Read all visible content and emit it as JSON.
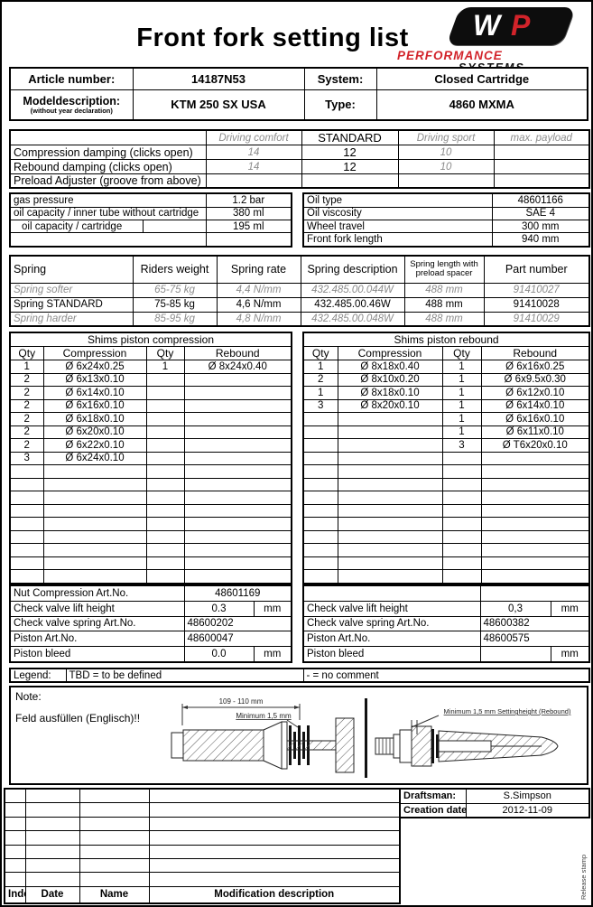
{
  "title": "Front fork setting list",
  "logo": {
    "monogram_w": "W",
    "monogram_p": "P",
    "performance": "PERFORMANCE",
    "systems": "SYSTEMS"
  },
  "colors": {
    "accent_red": "#d2232a",
    "muted_gray": "#8c8c8c"
  },
  "header": {
    "article_number_label": "Article number:",
    "article_number": "14187N53",
    "system_label": "System:",
    "system": "Closed Cartridge",
    "model_label": "Modeldescription:",
    "model_sublabel": "(without year declaration)",
    "model": "KTM 250 SX USA",
    "type_label": "Type:",
    "type": "4860 MXMA"
  },
  "damping": {
    "columns": [
      "Driving comfort",
      "STANDARD",
      "Driving sport",
      "max. payload"
    ],
    "rows": [
      {
        "label": "Compression damping (clicks open)",
        "values": [
          "14",
          "12",
          "10",
          ""
        ]
      },
      {
        "label": "Rebound damping (clicks open)",
        "values": [
          "14",
          "12",
          "10",
          ""
        ]
      },
      {
        "label": "Preload Adjuster (groove from above)",
        "values": [
          "",
          "",
          "",
          ""
        ]
      }
    ]
  },
  "oil_left": {
    "rows": [
      {
        "label": "gas pressure",
        "value": "1.2 bar"
      },
      {
        "label": "oil capacity / inner tube without cartridge",
        "value": "380 ml"
      },
      {
        "label": "oil capacity / cartridge",
        "value": "195 ml"
      },
      {
        "label": "",
        "value": ""
      }
    ]
  },
  "oil_right": {
    "rows": [
      {
        "label": "Oil type",
        "value": "48601166"
      },
      {
        "label": "Oil viscosity",
        "value": "SAE 4"
      },
      {
        "label": "Wheel travel",
        "value": "300 mm"
      },
      {
        "label": "Front fork length",
        "value": "940 mm"
      }
    ]
  },
  "spring": {
    "headers": [
      "Spring",
      "Riders weight",
      "Spring rate",
      "Spring description",
      "Spring length with preload spacer",
      "Part number"
    ],
    "rows": [
      {
        "style": "muted",
        "cells": [
          "Spring softer",
          "65-75 kg",
          "4,4 N/mm",
          "432.485.00.044W",
          "488 mm",
          "91410027"
        ]
      },
      {
        "style": "standard",
        "cells": [
          "Spring STANDARD",
          "75-85 kg",
          "4,6 N/mm",
          "432.485.00.46W",
          "488 mm",
          "91410028"
        ]
      },
      {
        "style": "muted",
        "cells": [
          "Spring harder",
          "85-95 kg",
          "4,8 N/mm",
          "432.485.00.048W",
          "488 mm",
          "91410029"
        ]
      }
    ]
  },
  "shims_compression": {
    "title": "Shims piston compression",
    "headers": [
      "Qty",
      "Compression",
      "Qty",
      "Rebound"
    ],
    "rows": [
      [
        "1",
        "Ø 6x24x0.25",
        "1",
        "Ø 8x24x0.40"
      ],
      [
        "2",
        "Ø 6x13x0.10",
        "",
        ""
      ],
      [
        "2",
        "Ø 6x14x0.10",
        "",
        ""
      ],
      [
        "2",
        "Ø 6x16x0.10",
        "",
        ""
      ],
      [
        "2",
        "Ø 6x18x0.10",
        "",
        ""
      ],
      [
        "2",
        "Ø 6x20x0.10",
        "",
        ""
      ],
      [
        "2",
        "Ø 6x22x0.10",
        "",
        ""
      ],
      [
        "3",
        "Ø 6x24x0.10",
        "",
        ""
      ],
      [
        "",
        "",
        "",
        ""
      ],
      [
        "",
        "",
        "",
        ""
      ],
      [
        "",
        "",
        "",
        ""
      ],
      [
        "",
        "",
        "",
        ""
      ],
      [
        "",
        "",
        "",
        ""
      ],
      [
        "",
        "",
        "",
        ""
      ],
      [
        "",
        "",
        "",
        ""
      ],
      [
        "",
        "",
        "",
        ""
      ],
      [
        "",
        "",
        "",
        ""
      ]
    ],
    "footer": {
      "nut_label": "Nut Compression Art.No.",
      "nut_value": "48601169",
      "lift_label": "Check valve lift height",
      "lift_value": "0.3",
      "lift_unit": "mm",
      "spring_label": "Check valve spring Art.No.",
      "spring_value": "48600202",
      "piston_label": "Piston Art.No.",
      "piston_value": "48600047",
      "bleed_label": "Piston bleed",
      "bleed_value": "0.0",
      "bleed_unit": "mm"
    }
  },
  "shims_rebound": {
    "title": "Shims piston rebound",
    "headers": [
      "Qty",
      "Compression",
      "Qty",
      "Rebound"
    ],
    "rows": [
      [
        "1",
        "Ø 8x18x0.40",
        "1",
        "Ø 6x16x0.25"
      ],
      [
        "2",
        "Ø 8x10x0.20",
        "1",
        "Ø 6x9.5x0.30"
      ],
      [
        "1",
        "Ø 8x18x0.10",
        "1",
        "Ø 6x12x0.10"
      ],
      [
        "3",
        "Ø 8x20x0.10",
        "1",
        "Ø 6x14x0.10"
      ],
      [
        "",
        "",
        "1",
        "Ø 6x16x0.10"
      ],
      [
        "",
        "",
        "1",
        "Ø 6x11x0.10"
      ],
      [
        "",
        "",
        "3",
        "Ø T6x20x0.10"
      ],
      [
        "",
        "",
        "",
        ""
      ],
      [
        "",
        "",
        "",
        ""
      ],
      [
        "",
        "",
        "",
        ""
      ],
      [
        "",
        "",
        "",
        ""
      ],
      [
        "",
        "",
        "",
        ""
      ],
      [
        "",
        "",
        "",
        ""
      ],
      [
        "",
        "",
        "",
        ""
      ],
      [
        "",
        "",
        "",
        ""
      ],
      [
        "",
        "",
        "",
        ""
      ],
      [
        "",
        "",
        "",
        ""
      ]
    ],
    "footer": {
      "nut_label": "",
      "nut_value": "",
      "lift_label": "Check valve lift height",
      "lift_value": "0,3",
      "lift_unit": "mm",
      "spring_label": "Check valve spring Art.No.",
      "spring_value": "48600382",
      "piston_label": "Piston Art.No.",
      "piston_value": "48600575",
      "bleed_label": "Piston bleed",
      "bleed_value": "",
      "bleed_unit": "mm"
    }
  },
  "legend": {
    "label": "Legend:",
    "tbd": "TBD = to be defined",
    "dash": "- = no comment"
  },
  "note": {
    "label": "Note:",
    "text": "Feld ausfüllen (Englisch)!!",
    "dim_label": "109 - 110 mm",
    "min_label_left": "Minimum 1,5 mm",
    "min_label_right": "Minimum 1,5 mm Settingheight (Rebound)"
  },
  "footer": {
    "mod_headers": [
      "Index",
      "Date",
      "Name",
      "Modification description"
    ],
    "empty_rows": 7,
    "draftsman_label": "Draftsman:",
    "draftsman": "S.Simpson",
    "creation_label": "Creation date:",
    "creation_date": "2012-11-09",
    "release_stamp": "Release stamp"
  }
}
